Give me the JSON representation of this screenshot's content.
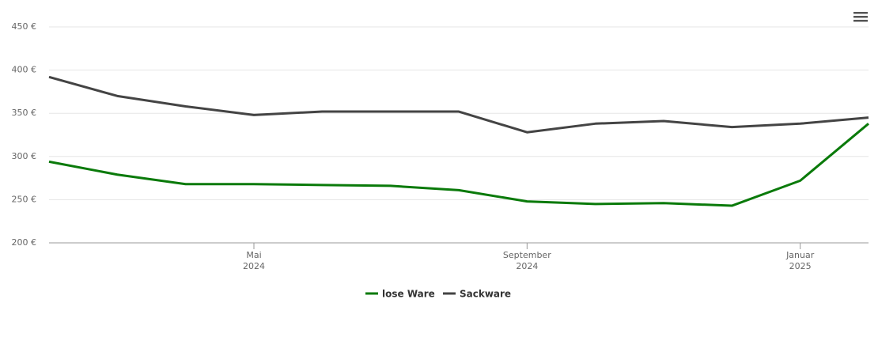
{
  "chart_data": {
    "type": "line",
    "x": [
      "2024-02",
      "2024-03",
      "2024-04",
      "2024-05",
      "2024-06",
      "2024-07",
      "2024-08",
      "2024-09",
      "2024-10",
      "2024-11",
      "2024-12",
      "2025-01",
      "2025-02"
    ],
    "series": [
      {
        "name": "lose Ware",
        "color": "#0a7a0a",
        "values": [
          294,
          279,
          268,
          268,
          267,
          266,
          261,
          248,
          245,
          246,
          243,
          272,
          338
        ]
      },
      {
        "name": "Sackware",
        "color": "#444444",
        "values": [
          392,
          370,
          358,
          348,
          352,
          352,
          352,
          328,
          338,
          341,
          334,
          338,
          345
        ]
      }
    ],
    "xlim": [
      "2024-02",
      "2025-02"
    ],
    "xticks": [
      {
        "value": "2024-05",
        "label": "Mai 2024"
      },
      {
        "value": "2024-09",
        "label": "September 2024"
      },
      {
        "value": "2025-01",
        "label": "Januar 2025"
      }
    ],
    "ylim": [
      200,
      450
    ],
    "yticks": [
      {
        "value": 200,
        "label": "200 €"
      },
      {
        "value": 250,
        "label": "250 €"
      },
      {
        "value": 300,
        "label": "300 €"
      },
      {
        "value": 350,
        "label": "350 €"
      },
      {
        "value": 400,
        "label": "400 €"
      },
      {
        "value": 450,
        "label": "450 €"
      }
    ],
    "grid": true,
    "legend": "bottom"
  }
}
